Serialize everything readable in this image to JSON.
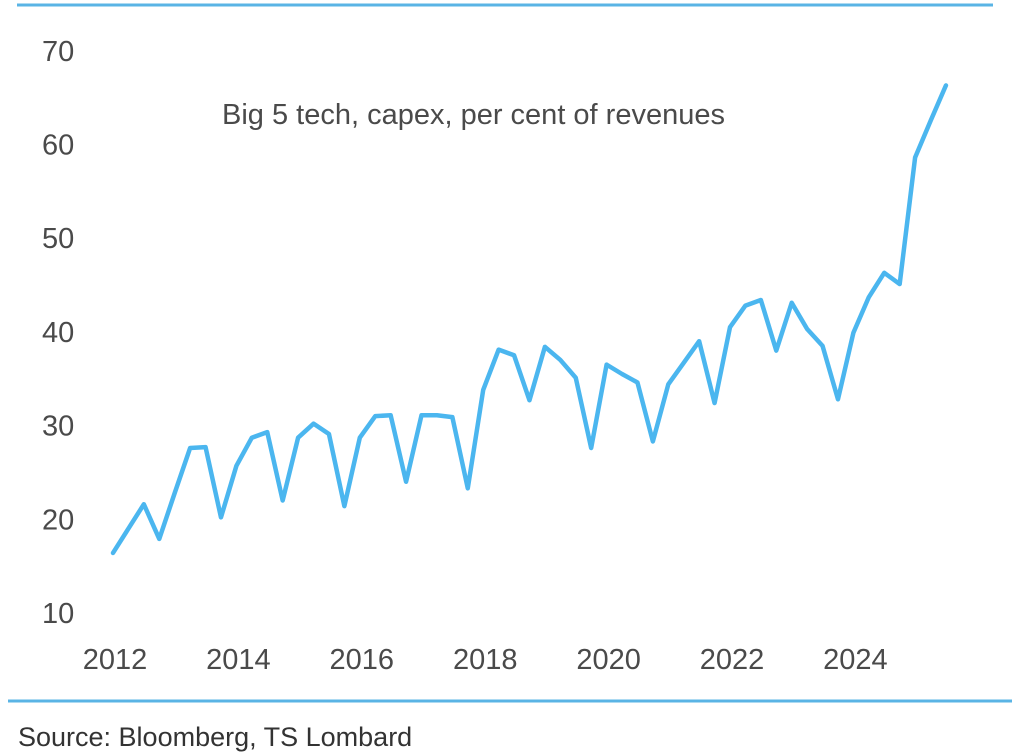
{
  "chart_data": {
    "type": "line",
    "title": "Big 5 tech, capex, per cent of revenues",
    "xlabel": "",
    "ylabel": "",
    "xlim": [
      2012,
      2025.6
    ],
    "ylim": [
      10,
      70
    ],
    "grid": false,
    "x_ticks": [
      "2012",
      "2014",
      "2016",
      "2018",
      "2020",
      "2022",
      "2024"
    ],
    "y_ticks": [
      "10",
      "20",
      "30",
      "40",
      "50",
      "60",
      "70"
    ],
    "series": [
      {
        "name": "Big 5 tech capex % of revenues",
        "color": "#4bb6ef",
        "x_start": 2012.0,
        "x_step": 0.25,
        "values": [
          16.3,
          18.9,
          21.5,
          17.8,
          22.7,
          27.5,
          27.6,
          20.1,
          25.6,
          28.6,
          29.2,
          21.9,
          28.6,
          30.1,
          29.0,
          21.3,
          28.6,
          30.9,
          31.0,
          23.9,
          31.0,
          31.0,
          30.8,
          23.2,
          33.7,
          38.0,
          37.4,
          32.6,
          38.3,
          36.9,
          35.0,
          27.5,
          36.4,
          35.4,
          34.5,
          28.2,
          34.3,
          36.6,
          38.9,
          32.3,
          40.4,
          42.7,
          43.3,
          37.9,
          43.0,
          40.2,
          38.4,
          32.7,
          39.8,
          43.6,
          46.2,
          45.0,
          58.5,
          62.4,
          66.2
        ]
      }
    ]
  },
  "source": "Source: Bloomberg, TS Lombard",
  "colors": {
    "accent": "#4bb6ef",
    "text": "#4a4a4a"
  }
}
